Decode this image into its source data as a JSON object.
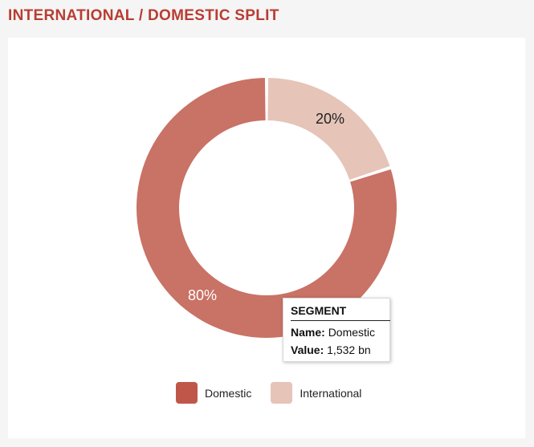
{
  "page": {
    "title": "INTERNATIONAL / DOMESTIC SPLIT"
  },
  "chart_data": {
    "type": "pie",
    "title": "",
    "categories": [
      "Domestic",
      "International"
    ],
    "values": [
      80,
      20
    ],
    "value_format": "percent",
    "donut": true,
    "slice_labels": [
      "80%",
      "20%"
    ],
    "colors": [
      "#c97266",
      "#e6c4b8"
    ],
    "legend": {
      "placement": "bottom",
      "entries": [
        {
          "label": "Domestic",
          "color": "#c0564a"
        },
        {
          "label": "International",
          "color": "#e6c4b8"
        }
      ]
    }
  },
  "tooltip": {
    "title": "SEGMENT",
    "name_label": "Name:",
    "name_value": "Domestic",
    "value_label": "Value:",
    "value_value": "1,532 bn"
  }
}
